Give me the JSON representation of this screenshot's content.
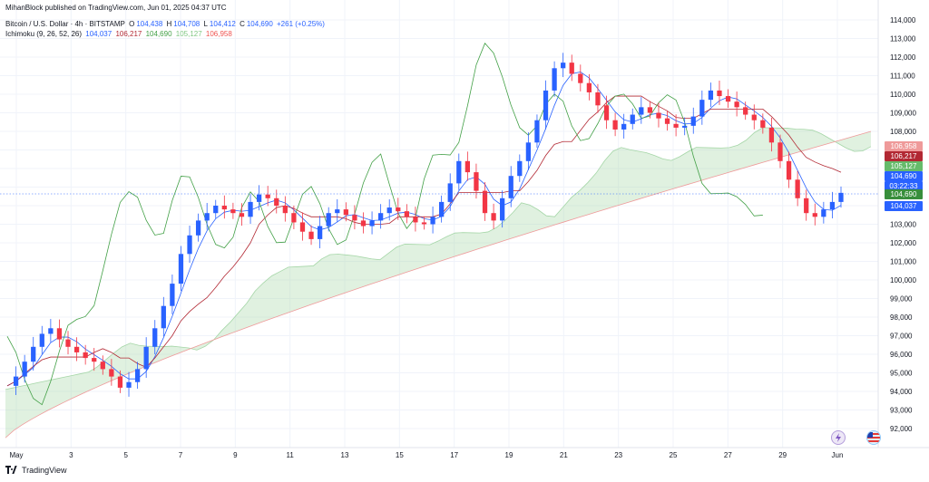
{
  "header": {
    "published": "MihanBlock published on TradingView.com, Jun 01, 2025 04:37 UTC",
    "symbol": "Bitcoin / U.S. Dollar · 4h · BITSTAMP",
    "o_label": "O",
    "o_value": "104,438",
    "h_label": "H",
    "h_value": "104,708",
    "l_label": "L",
    "l_value": "104,412",
    "c_label": "C",
    "c_value": "104,690",
    "change": "+261 (+0.25%)",
    "indicator": "Ichimoku (9, 26, 52, 26)",
    "ind_v1": "104,037",
    "ind_v2": "106,217",
    "ind_v3": "104,690",
    "ind_v4": "105,127",
    "ind_v5": "106,958"
  },
  "price_labels": {
    "span_b": "106,958",
    "base_line": "106,217",
    "span_a": "105,127",
    "last_price": "104,690",
    "countdown": "03:22:33",
    "lagging_span": "104,690",
    "conversion_line": "104,037"
  },
  "footer": {
    "brand": "TradingView"
  },
  "colors": {
    "up": "#2962ff",
    "down": "#f23645",
    "conversion": "#2962ff",
    "base": "#b22833",
    "lagging": "#43a047",
    "cloud_bull": "#a5d6a7",
    "cloud_bear": "#ef9a9a",
    "span_b_label": "#ef5350",
    "base_label": "#b22833",
    "span_a_label": "#66bb6a",
    "last_label": "#2962ff",
    "lag_label": "#388e3c",
    "conv_label": "#2962ff"
  },
  "chart_data": {
    "type": "candlestick",
    "y_axis": {
      "min": 92000,
      "max": 114000,
      "ticks": [
        "92,000",
        "93,000",
        "94,000",
        "95,000",
        "96,000",
        "97,000",
        "98,000",
        "99,000",
        "100,000",
        "101,000",
        "102,000",
        "103,000",
        "104,000",
        "105,000",
        "106,000",
        "107,000",
        "108,000",
        "109,000",
        "110,000",
        "111,000",
        "112,000",
        "113,000",
        "114,000"
      ]
    },
    "x_axis": {
      "labels": [
        "May",
        "3",
        "5",
        "7",
        "9",
        "11",
        "13",
        "15",
        "17",
        "19",
        "21",
        "23",
        "25",
        "27",
        "29",
        "Jun"
      ]
    },
    "close_path": [
      94300,
      94800,
      95600,
      96400,
      97100,
      97400,
      96800,
      96400,
      96100,
      95800,
      95600,
      95200,
      94800,
      94200,
      94500,
      95200,
      96400,
      97400,
      98600,
      99800,
      101400,
      102400,
      103200,
      103600,
      104000,
      103800,
      103600,
      103400,
      104200,
      104600,
      104400,
      104000,
      103600,
      103100,
      102600,
      102200,
      102900,
      103600,
      103800,
      103500,
      103200,
      102900,
      103200,
      103600,
      103900,
      103700,
      103400,
      103100,
      103000,
      103400,
      104200,
      105200,
      106400,
      105800,
      104800,
      103600,
      103200,
      104400,
      105600,
      106400,
      107400,
      108600,
      110200,
      111400,
      111700,
      111100,
      110600,
      110100,
      109400,
      108600,
      108100,
      108400,
      108900,
      109300,
      109000,
      108700,
      108400,
      108200,
      108300,
      108800,
      109700,
      110200,
      109900,
      109600,
      109300,
      108900,
      108600,
      108200,
      107400,
      106400,
      105400,
      104400,
      103600,
      103400,
      103800,
      104200,
      104690
    ],
    "cloud": {
      "span_a_start": 94000,
      "span_b_start": 91500,
      "span_a_end": 109000,
      "span_b_end": 108000
    }
  }
}
